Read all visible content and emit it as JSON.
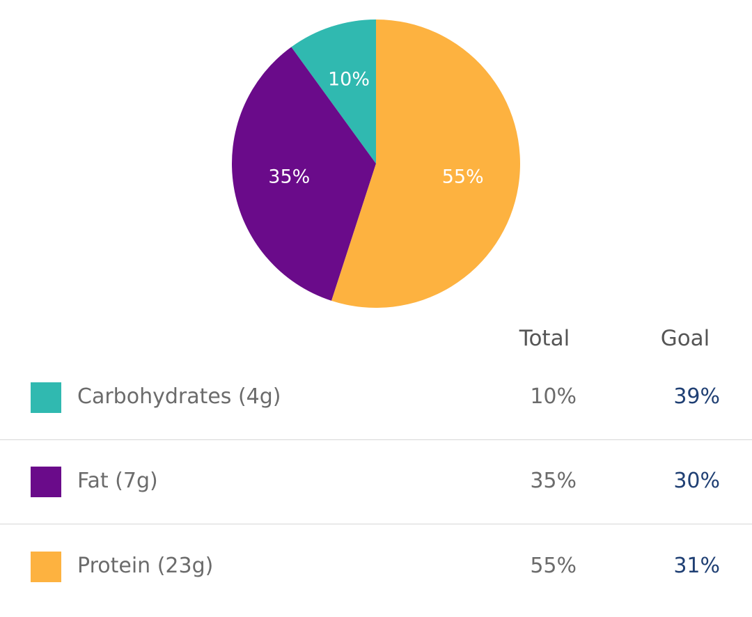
{
  "chart_data": {
    "type": "pie",
    "slices": [
      {
        "label": "Carbohydrates (4g)",
        "value": 10,
        "display": "10%",
        "color": "#30b9b0"
      },
      {
        "label": "Fat (7g)",
        "value": 35,
        "display": "35%",
        "color": "#6a0b8a"
      },
      {
        "label": "Protein (23g)",
        "value": 55,
        "display": "55%",
        "color": "#fdb240"
      }
    ]
  },
  "table": {
    "headers": {
      "total": "Total",
      "goal": "Goal"
    },
    "rows": [
      {
        "label": "Carbohydrates (4g)",
        "total": "10%",
        "goal": "39%",
        "color": "#30b9b0"
      },
      {
        "label": "Fat (7g)",
        "total": "35%",
        "goal": "30%",
        "color": "#6a0b8a"
      },
      {
        "label": "Protein (23g)",
        "total": "55%",
        "goal": "31%",
        "color": "#fdb240"
      }
    ]
  }
}
